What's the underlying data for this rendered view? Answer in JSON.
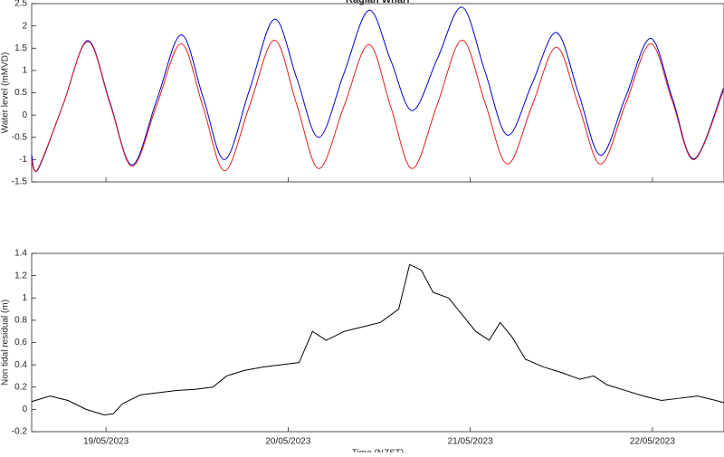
{
  "chart_data": [
    {
      "type": "line",
      "title": "Raglan Wharf",
      "ylabel": "Water level (mMVD)",
      "smooth": true,
      "show_xtick_labels": false,
      "x": [
        18.592,
        18.627,
        18.764,
        18.9,
        19.022,
        19.144,
        19.279,
        19.413,
        19.533,
        19.652,
        19.789,
        19.925,
        20.047,
        20.169,
        20.306,
        20.443,
        20.563,
        20.682,
        20.819,
        20.955,
        21.08,
        21.204,
        21.339,
        21.473,
        21.595,
        21.716,
        21.853,
        21.99,
        22.11,
        22.229,
        22.39
      ],
      "series": [
        {
          "color": "#0000cc",
          "values": [
            -0.9,
            -1.22,
            0.23,
            1.67,
            0.28,
            -1.12,
            0.34,
            1.8,
            0.4,
            -1.0,
            0.58,
            2.15,
            0.83,
            -0.5,
            0.93,
            2.35,
            1.23,
            0.1,
            1.26,
            2.42,
            0.99,
            -0.45,
            0.7,
            1.85,
            0.48,
            -0.9,
            0.41,
            1.72,
            0.37,
            -0.98,
            0.6
          ]
        },
        {
          "color": "#e02020",
          "values": [
            -1.0,
            -1.2,
            0.23,
            1.65,
            0.25,
            -1.15,
            0.23,
            1.6,
            0.18,
            -1.25,
            0.22,
            1.68,
            0.24,
            -1.2,
            0.19,
            1.58,
            0.19,
            -1.2,
            0.24,
            1.68,
            0.29,
            -1.1,
            0.21,
            1.52,
            0.21,
            -1.1,
            0.25,
            1.6,
            0.3,
            -1.0,
            0.55
          ]
        }
      ],
      "xlim": [
        18.592,
        22.393
      ],
      "xticks": [
        19,
        20,
        21,
        22
      ],
      "ylim": [
        -1.5,
        2.5
      ],
      "yticks": [
        -1.5,
        -1,
        -0.5,
        0,
        0.5,
        1,
        1.5,
        2,
        2.5
      ]
    },
    {
      "type": "line",
      "xlabel": "Time (NZST)",
      "ylabel": "Non tidal residual (m)",
      "smooth": false,
      "show_xtick_labels": true,
      "x": [
        18.592,
        18.692,
        18.791,
        18.891,
        18.99,
        19.04,
        19.09,
        19.189,
        19.289,
        19.388,
        19.488,
        19.587,
        19.662,
        19.761,
        19.861,
        19.96,
        20.06,
        20.134,
        20.209,
        20.308,
        20.408,
        20.507,
        20.607,
        20.667,
        20.731,
        20.796,
        20.881,
        20.955,
        21.03,
        21.104,
        21.164,
        21.229,
        21.303,
        21.403,
        21.502,
        21.602,
        21.677,
        21.751,
        21.851,
        21.95,
        22.05,
        22.149,
        22.249,
        22.348,
        22.393
      ],
      "series": [
        {
          "color": "#000000",
          "values": [
            0.07,
            0.12,
            0.08,
            0.0,
            -0.05,
            -0.04,
            0.05,
            0.13,
            0.15,
            0.17,
            0.18,
            0.2,
            0.3,
            0.35,
            0.38,
            0.4,
            0.42,
            0.7,
            0.62,
            0.7,
            0.74,
            0.78,
            0.9,
            1.3,
            1.25,
            1.05,
            1.0,
            0.85,
            0.7,
            0.62,
            0.78,
            0.65,
            0.45,
            0.38,
            0.33,
            0.27,
            0.3,
            0.22,
            0.17,
            0.12,
            0.08,
            0.1,
            0.12,
            0.08,
            0.06
          ]
        }
      ],
      "xlim": [
        18.592,
        22.393
      ],
      "xticks": [
        {
          "value": 19,
          "label": "19/05/2023"
        },
        {
          "value": 20,
          "label": "20/05/2023"
        },
        {
          "value": 21,
          "label": "21/05/2023"
        },
        {
          "value": 22,
          "label": "22/05/2023"
        }
      ],
      "ylim": [
        -0.2,
        1.4
      ],
      "yticks": [
        -0.2,
        0,
        0.2,
        0.4,
        0.6,
        0.8,
        1,
        1.2,
        1.4
      ]
    }
  ]
}
